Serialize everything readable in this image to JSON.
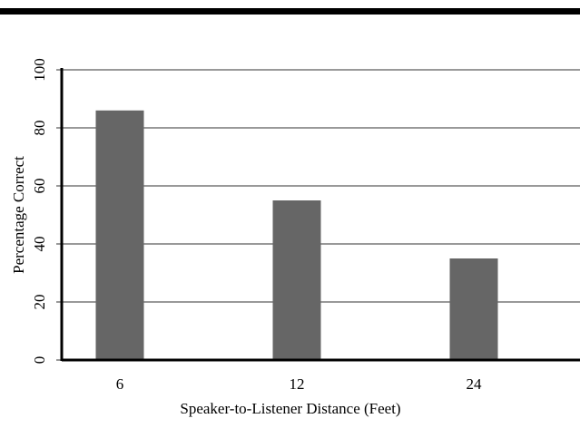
{
  "chart_data": {
    "type": "bar",
    "categories": [
      "6",
      "12",
      "24"
    ],
    "values": [
      86,
      55,
      35
    ],
    "color": "#666666",
    "xlabel": "Speaker-to-Listener Distance (Feet)",
    "ylabel": "Percentage Correct",
    "ylim": [
      0,
      100
    ],
    "yticks": [
      0,
      20,
      40,
      60,
      80,
      100
    ],
    "grid": true
  }
}
